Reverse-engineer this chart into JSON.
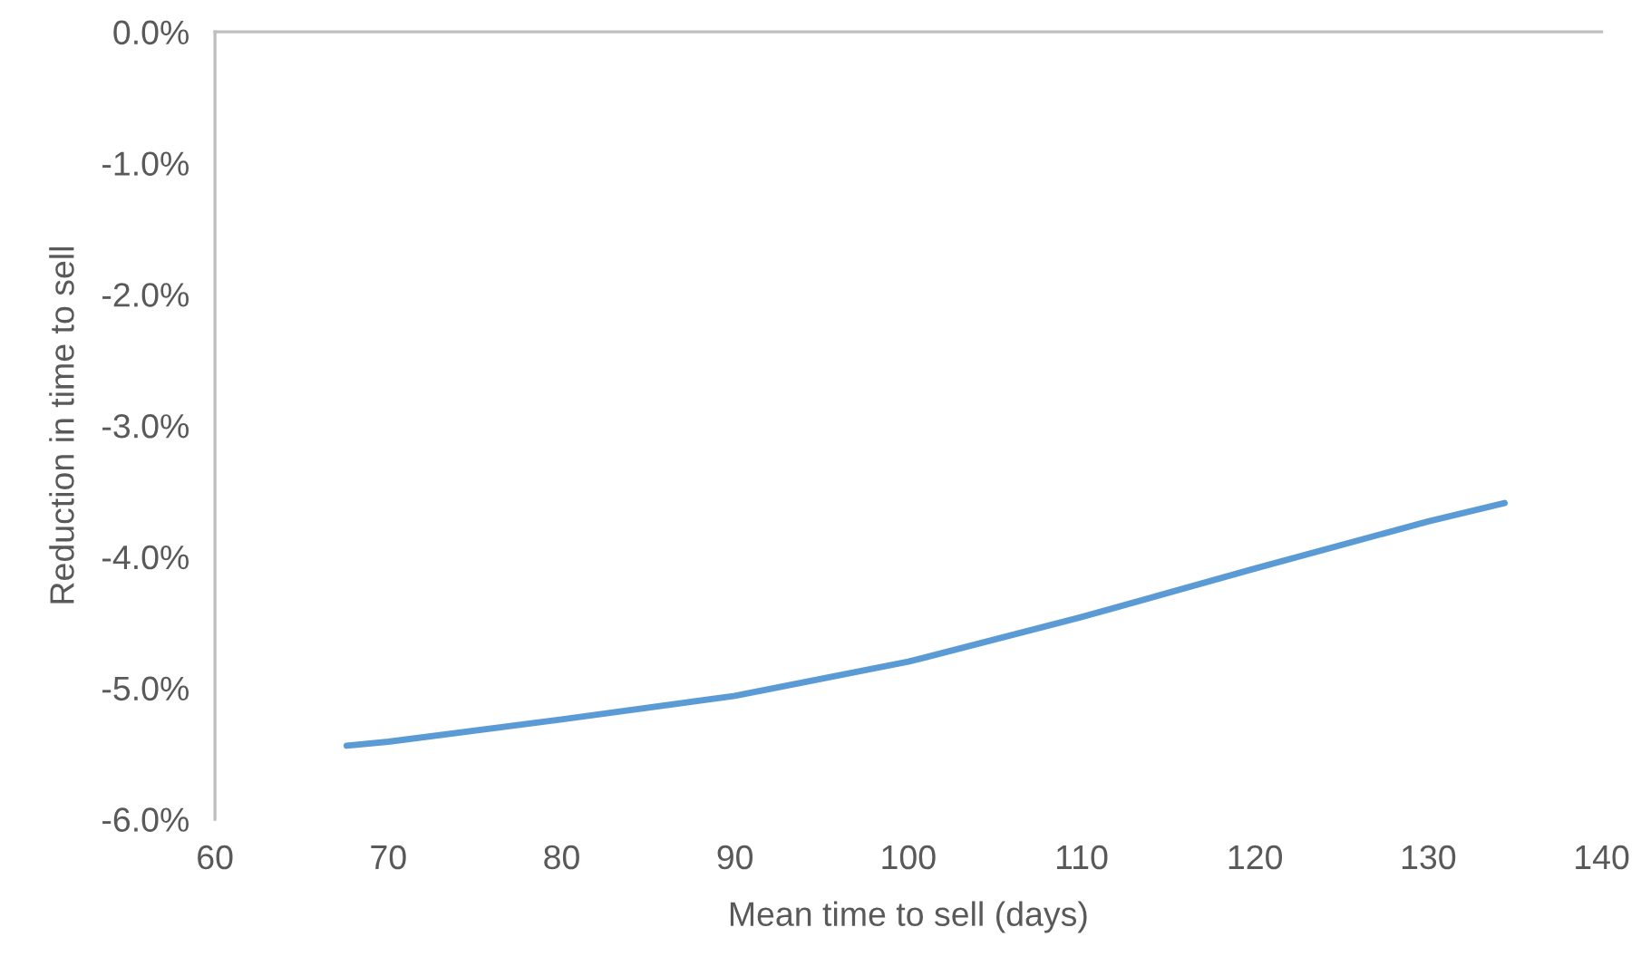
{
  "chart_data": {
    "type": "line",
    "xlabel": "Mean time to sell (days)",
    "ylabel": "Reduction in time to sell",
    "x": [
      67.6,
      70,
      80,
      90,
      100,
      110,
      120,
      130,
      134.4
    ],
    "series": [
      {
        "color": "#5b9bd5",
        "values": [
          -5.44,
          -5.41,
          -5.24,
          -5.06,
          -4.8,
          -4.46,
          -4.09,
          -3.73,
          -3.59
        ]
      }
    ],
    "xlim": [
      60,
      140
    ],
    "xticks": [
      60,
      70,
      80,
      90,
      100,
      110,
      120,
      130,
      140
    ],
    "ylim": [
      -6,
      0
    ],
    "yticks": [
      {
        "value": -6,
        "label": "-6.0%"
      },
      {
        "value": -5,
        "label": "-5.0%"
      },
      {
        "value": -4,
        "label": "-4.0%"
      },
      {
        "value": -3,
        "label": "-3.0%"
      },
      {
        "value": -2,
        "label": "-2.0%"
      },
      {
        "value": -1,
        "label": "-1.0%"
      },
      {
        "value": 0,
        "label": "0.0%"
      }
    ],
    "grid": false,
    "legend": false,
    "marker": "none",
    "line_style": "solid"
  }
}
